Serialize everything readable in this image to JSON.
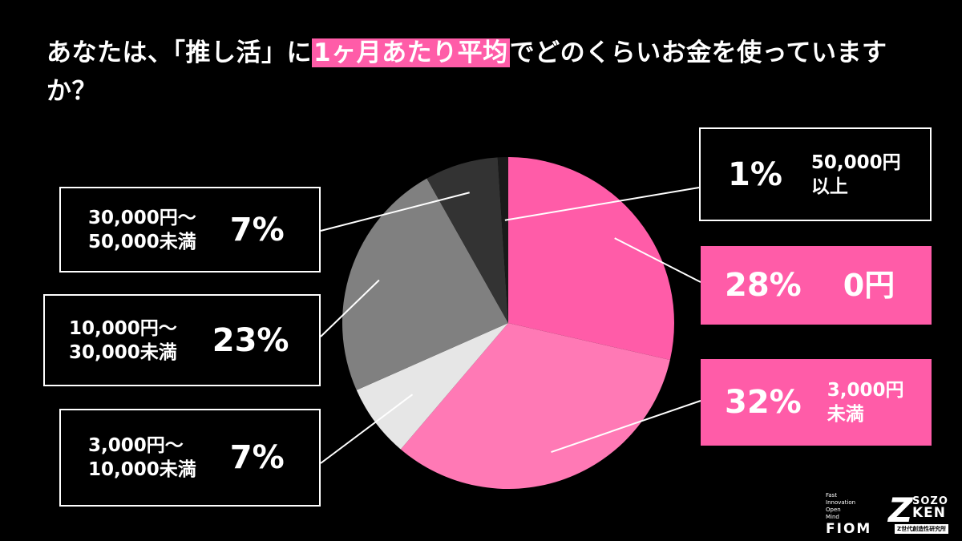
{
  "title": {
    "part1": "あなたは、「推し活」に",
    "highlight": "1ヶ月あたり平均",
    "part2": "でどのくらいお金を使っていますか？"
  },
  "colors": {
    "background": "#000000",
    "accent": "#ff5ca8"
  },
  "chart_data": {
    "type": "pie",
    "title": "あなたは、「推し活」に1ヶ月あたり平均でどのくらいお金を使っていますか？",
    "slices": [
      {
        "label": "0円",
        "value": 28,
        "color": "#ff5ca8"
      },
      {
        "label": "3,000円 未満",
        "value": 32,
        "color": "#ff79b5"
      },
      {
        "label": "3,000円〜 10,000未満",
        "value": 7,
        "color": "#e6e6e6"
      },
      {
        "label": "10,000円〜 30,000未満",
        "value": 23,
        "color": "#808080"
      },
      {
        "label": "30,000円〜 50,000未満",
        "value": 7,
        "color": "#333333"
      },
      {
        "label": "50,000円 以上",
        "value": 1,
        "color": "#1a1a1a"
      }
    ]
  },
  "callouts": {
    "c0": {
      "pct": "28%",
      "label": "0円"
    },
    "c1": {
      "pct": "32%",
      "label": "3,000円\n未満"
    },
    "c2": {
      "pct": "7%",
      "label": "3,000円〜\n10,000未満"
    },
    "c3": {
      "pct": "23%",
      "label": "10,000円〜\n30,000未満"
    },
    "c4": {
      "pct": "7%",
      "label": "30,000円〜\n50,000未満"
    },
    "c5": {
      "pct": "1%",
      "label": "50,000円\n以上"
    }
  },
  "logos": {
    "fiom_small": "Fast\nInnovation\nOpen\nMind",
    "fiom": "FIOM",
    "sozo_z": "Z",
    "sozo_line1": "SOZO",
    "sozo_line2": "KEN",
    "sozo_tag": "Z世代創造性研究所"
  }
}
